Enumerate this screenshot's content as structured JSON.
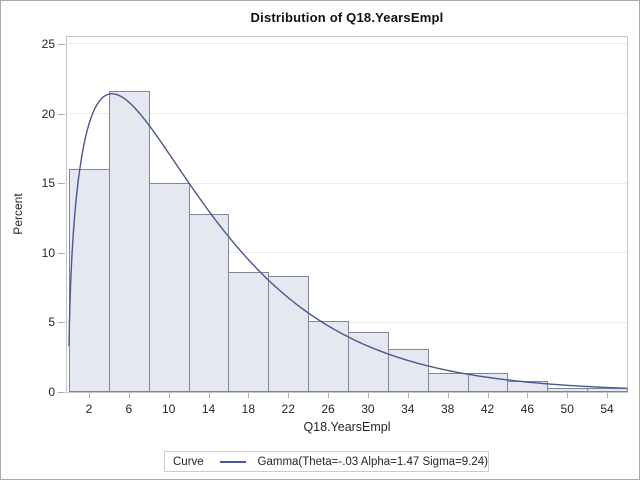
{
  "title": "Distribution of Q18.YearsEmpl",
  "y_axis": {
    "label": "Percent",
    "ticks": [
      0,
      5,
      10,
      15,
      20,
      25
    ]
  },
  "x_axis": {
    "label": "Q18.YearsEmpl",
    "ticks": [
      2,
      6,
      10,
      14,
      18,
      22,
      26,
      30,
      34,
      38,
      42,
      46,
      50,
      54
    ]
  },
  "legend": {
    "title": "Curve",
    "entry": "Gamma(Theta=-.03 Alpha=1.47 Sigma=9.24)"
  },
  "chart_data": {
    "type": "bar",
    "subtype": "histogram-with-fitted-curve",
    "title": "Distribution of Q18.YearsEmpl",
    "xlabel": "Q18.YearsEmpl",
    "ylabel": "Percent",
    "categories": [
      2,
      6,
      10,
      14,
      18,
      22,
      26,
      30,
      34,
      38,
      42,
      46,
      50,
      54
    ],
    "bin_width": 4,
    "values": [
      16.0,
      21.6,
      15.0,
      12.8,
      8.6,
      8.3,
      5.1,
      4.3,
      3.1,
      1.4,
      1.4,
      0.8,
      0.3,
      0.3
    ],
    "xlim": [
      0,
      56
    ],
    "ylim": [
      0,
      25.5
    ],
    "x_ticks": [
      2,
      6,
      10,
      14,
      18,
      22,
      26,
      30,
      34,
      38,
      42,
      46,
      50,
      54
    ],
    "y_ticks": [
      0,
      5,
      10,
      15,
      20,
      25
    ],
    "y_gridlines": [
      5,
      10,
      15,
      20,
      25
    ],
    "grid": "horizontal",
    "legend_position": "bottom-outside",
    "curve": {
      "distribution": "gamma",
      "label": "Gamma(Theta=-.03 Alpha=1.47 Sigma=9.24)",
      "theta": -0.03,
      "alpha": 1.47,
      "sigma": 9.24
    }
  },
  "colors": {
    "bar_fill": "#E5E8F1",
    "bar_border": "#7F8695",
    "curve": "#4A5791",
    "frame": "#C2C6CC",
    "grid": "#ECECEE",
    "tick": "#ADADAD",
    "text": "#262626",
    "outer_border": "#A9ACB0",
    "legend_border": "#C9CCD3"
  }
}
